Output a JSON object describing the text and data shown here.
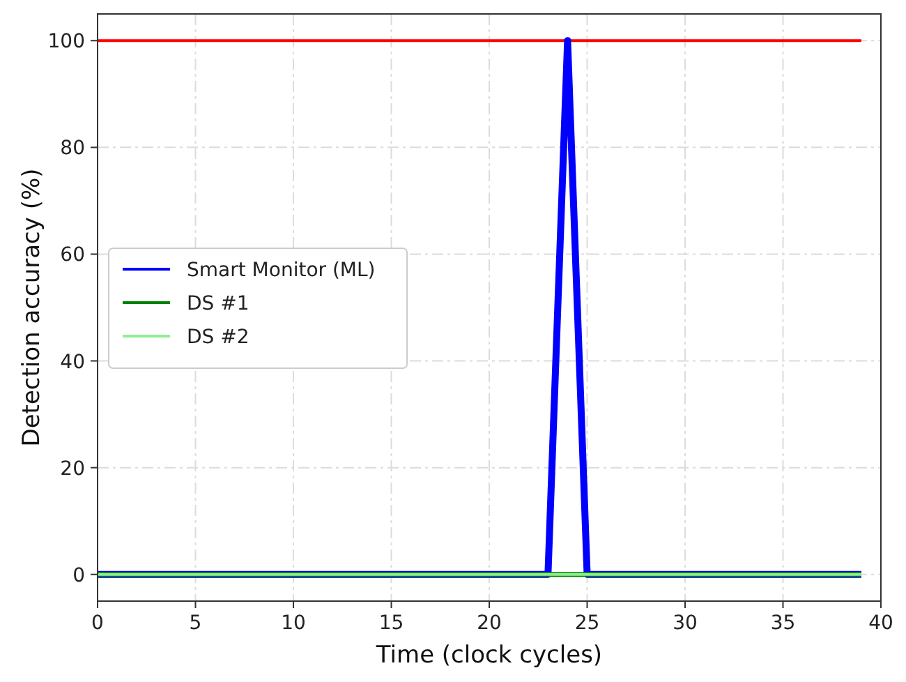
{
  "chart_data": {
    "type": "line",
    "xlabel": "Time (clock cycles)",
    "ylabel": "Detection accuracy (%)",
    "xlim": [
      0,
      40
    ],
    "ylim": [
      -5,
      105
    ],
    "xticks": [
      0,
      5,
      10,
      15,
      20,
      25,
      30,
      35,
      40
    ],
    "yticks": [
      0,
      20,
      40,
      60,
      80,
      100
    ],
    "grid": true,
    "legend": "left",
    "line_style": "solid",
    "marker": "none",
    "series": [
      {
        "color": "#ff0000",
        "x": [
          0,
          39
        ],
        "values": [
          100,
          100
        ]
      },
      {
        "name": "Smart Monitor (ML)",
        "color": "#0000ff",
        "x": [
          0,
          1,
          2,
          3,
          4,
          5,
          6,
          7,
          8,
          9,
          10,
          11,
          12,
          13,
          14,
          15,
          16,
          17,
          18,
          19,
          20,
          21,
          22,
          23,
          24,
          25,
          26,
          27,
          28,
          29,
          30,
          31,
          32,
          33,
          34,
          35,
          36,
          37,
          38,
          39
        ],
        "values": [
          0,
          0,
          0,
          0,
          0,
          0,
          0,
          0,
          0,
          0,
          0,
          0,
          0,
          0,
          0,
          0,
          0,
          0,
          0,
          0,
          0,
          0,
          0,
          0,
          100,
          0,
          0,
          0,
          0,
          0,
          0,
          0,
          0,
          0,
          0,
          0,
          0,
          0,
          0,
          0
        ]
      },
      {
        "name": "DS #1",
        "color": "#008000",
        "x": [
          0,
          1,
          2,
          3,
          4,
          5,
          6,
          7,
          8,
          9,
          10,
          11,
          12,
          13,
          14,
          15,
          16,
          17,
          18,
          19,
          20,
          21,
          22,
          23,
          24,
          25,
          26,
          27,
          28,
          29,
          30,
          31,
          32,
          33,
          34,
          35,
          36,
          37,
          38,
          39
        ],
        "values": [
          0,
          0,
          0,
          0,
          0,
          0,
          0,
          0,
          0,
          0,
          0,
          0,
          0,
          0,
          0,
          0,
          0,
          0,
          0,
          0,
          0,
          0,
          0,
          0,
          0,
          0,
          0,
          0,
          0,
          0,
          0,
          0,
          0,
          0,
          0,
          0,
          0,
          0,
          0,
          0
        ]
      },
      {
        "name": "DS #2",
        "color": "#90ee90",
        "x": [
          0,
          1,
          2,
          3,
          4,
          5,
          6,
          7,
          8,
          9,
          10,
          11,
          12,
          13,
          14,
          15,
          16,
          17,
          18,
          19,
          20,
          21,
          22,
          23,
          24,
          25,
          26,
          27,
          28,
          29,
          30,
          31,
          32,
          33,
          34,
          35,
          36,
          37,
          38,
          39
        ],
        "values": [
          0,
          0,
          0,
          0,
          0,
          0,
          0,
          0,
          0,
          0,
          0,
          0,
          0,
          0,
          0,
          0,
          0,
          0,
          0,
          0,
          0,
          0,
          0,
          0,
          0,
          0,
          0,
          0,
          0,
          0,
          0,
          0,
          0,
          0,
          0,
          0,
          0,
          0,
          0,
          0
        ]
      }
    ]
  }
}
